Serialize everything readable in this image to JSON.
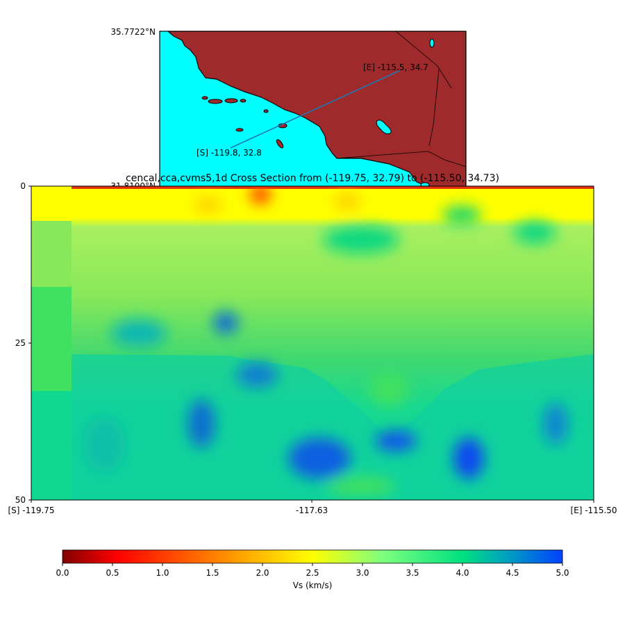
{
  "colors": {
    "ocean": "#00ffff",
    "land": "#9e2a2b",
    "coast": "#000000",
    "profile_line": "#1f77b4"
  },
  "map": {
    "lat_label_top": "35.7722°N",
    "lat_label_bottom": "31.8100°N",
    "start_marker": "[S] -119.8, 32.8",
    "end_marker": "[E] -115.5, 34.7"
  },
  "chart_data": {
    "type": "heatmap",
    "title": "cencal,cca,cvms5,1d Cross Section from (-119.75, 32.79) to (-115.50, 34.73)",
    "x_tick_labels": [
      "[S] -119.75",
      "-117.63",
      "[E] -115.50"
    ],
    "x_ticks": [
      -119.75,
      -117.63,
      -115.5
    ],
    "xlim": [
      -119.75,
      -115.5
    ],
    "y_tick_labels": [
      "0",
      "25",
      "50"
    ],
    "y_ticks": [
      0,
      25,
      50
    ],
    "ylim": [
      50,
      0
    ],
    "y_inverted": true,
    "colorbar": {
      "label": "Vs (km/s)",
      "ticks": [
        "0.0",
        "0.5",
        "1.0",
        "1.5",
        "2.0",
        "2.5",
        "3.0",
        "3.5",
        "4.0",
        "4.5",
        "5.0"
      ],
      "range": [
        0,
        5
      ],
      "colormap": "jet_r"
    }
  }
}
